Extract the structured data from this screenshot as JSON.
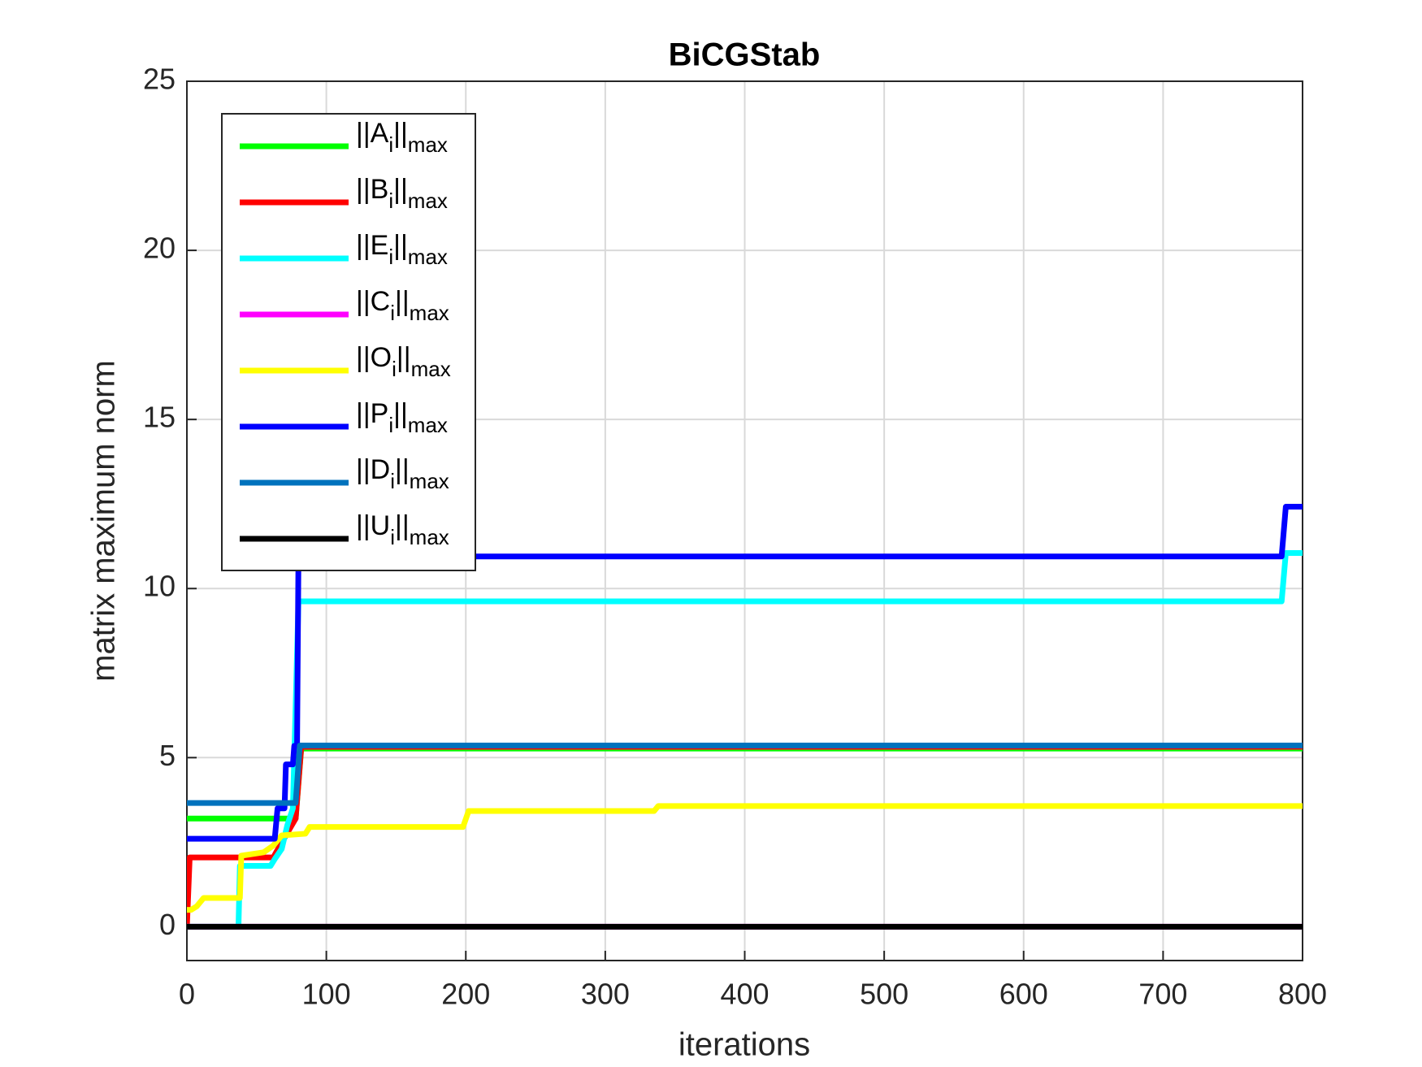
{
  "chart_data": {
    "type": "line",
    "title": "BiCGStab",
    "x_label": "iterations",
    "y_label": "matrix maximum norm",
    "xlim": [
      0,
      800
    ],
    "xticks": [
      0,
      100,
      200,
      300,
      400,
      500,
      600,
      700,
      800
    ],
    "ylim": [
      -1,
      25
    ],
    "yticks": [
      0,
      5,
      10,
      15,
      20,
      25
    ],
    "grid": true,
    "legend": "upper left",
    "series": [
      {
        "name": "||Ai||max",
        "color": "#00ff00",
        "x": [
          0,
          78,
          82,
          800
        ],
        "values": [
          3.2,
          3.2,
          5.27,
          5.27
        ]
      },
      {
        "name": "||Bi||max",
        "color": "#ff0000",
        "x": [
          0,
          2,
          62,
          64,
          78,
          82,
          800
        ],
        "values": [
          0,
          2.05,
          2.05,
          2.2,
          3.2,
          5.32,
          5.32
        ]
      },
      {
        "name": "||Ei||max",
        "color": "#00ffff",
        "x": [
          0,
          37,
          38,
          60,
          63,
          68,
          72,
          76,
          80,
          785,
          788,
          800
        ],
        "values": [
          0,
          0,
          1.8,
          1.8,
          2.0,
          2.3,
          3.0,
          3.5,
          9.62,
          9.62,
          11.05,
          11.05
        ]
      },
      {
        "name": "||Ci||max",
        "color": "#ff00ff",
        "x": [
          0,
          800
        ],
        "values": [
          0,
          0
        ]
      },
      {
        "name": "||Oi||max",
        "color": "#ffff00",
        "x": [
          0,
          3,
          7,
          12,
          38,
          39,
          55,
          62,
          68,
          85,
          88,
          198,
          202,
          335,
          338,
          800
        ],
        "values": [
          0.5,
          0.5,
          0.6,
          0.85,
          0.85,
          2.1,
          2.2,
          2.4,
          2.7,
          2.75,
          2.95,
          2.95,
          3.42,
          3.42,
          3.57,
          3.57
        ]
      },
      {
        "name": "||Pi||max",
        "color": "#0000ff",
        "x": [
          0,
          63,
          65,
          70,
          71,
          76,
          77,
          79,
          80,
          785,
          788,
          800
        ],
        "values": [
          2.6,
          2.6,
          3.5,
          3.5,
          4.8,
          4.8,
          5.35,
          5.35,
          10.95,
          10.95,
          12.42,
          12.42
        ]
      },
      {
        "name": "||Di||max",
        "color": "#0072bd",
        "x": [
          0,
          78,
          81,
          800
        ],
        "values": [
          3.66,
          3.66,
          5.36,
          5.36
        ]
      },
      {
        "name": "||Ui||max",
        "color": "#000000",
        "x": [
          0,
          800
        ],
        "values": [
          0,
          0
        ]
      }
    ]
  }
}
